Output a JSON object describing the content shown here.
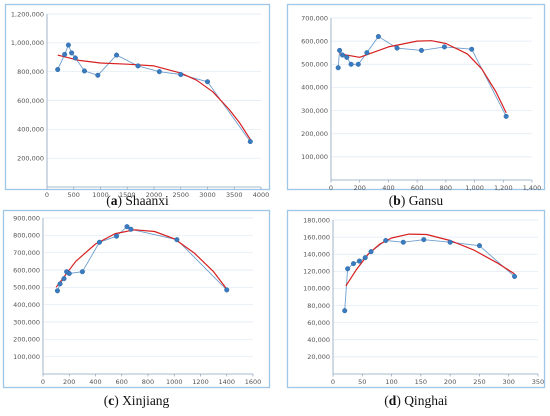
{
  "colors": {
    "frame": "#9ec6e6",
    "grid": "#dde9f3",
    "axis": "#8aa4bc",
    "observed": "#3a7bbf",
    "fit": "#d62020"
  },
  "chart_data": [
    {
      "type": "scatter",
      "panel_label": "a",
      "name": "Shaanxi",
      "xlim": [
        0,
        4000
      ],
      "ylim": [
        0,
        1200000
      ],
      "x_ticks": [
        "0",
        "500",
        "1000",
        "1500",
        "2000",
        "2500",
        "3000",
        "3500",
        "4000"
      ],
      "y_ticks": [
        "",
        "200,000",
        "400,000",
        "600,000",
        "800,000",
        "1,000,000",
        "1,200,000"
      ],
      "x_tick_values": [
        0,
        500,
        1000,
        1500,
        2000,
        2500,
        3000,
        3500,
        4000
      ],
      "y_tick_values": [
        0,
        200000,
        400000,
        600000,
        800000,
        1000000,
        1200000
      ],
      "points": [
        [
          200,
          815000
        ],
        [
          330,
          920000
        ],
        [
          400,
          985000
        ],
        [
          460,
          930000
        ],
        [
          530,
          895000
        ],
        [
          700,
          805000
        ],
        [
          950,
          775000
        ],
        [
          1300,
          915000
        ],
        [
          1700,
          840000
        ],
        [
          2100,
          800000
        ],
        [
          2500,
          780000
        ],
        [
          3000,
          730000
        ],
        [
          3800,
          315000
        ]
      ],
      "fit": [
        [
          200,
          915000
        ],
        [
          600,
          878000
        ],
        [
          1000,
          860000
        ],
        [
          1500,
          852000
        ],
        [
          2000,
          840000
        ],
        [
          2500,
          790000
        ],
        [
          2800,
          740000
        ],
        [
          3100,
          660000
        ],
        [
          3400,
          540000
        ],
        [
          3600,
          445000
        ],
        [
          3800,
          330000
        ]
      ]
    },
    {
      "type": "scatter",
      "panel_label": "b",
      "name": "Gansu",
      "xlim": [
        0,
        1400
      ],
      "ylim": [
        0,
        700000
      ],
      "x_ticks": [
        "0",
        "200",
        "400",
        "600",
        "800",
        "1,000",
        "1,200",
        "1,400"
      ],
      "y_ticks": [
        "",
        "100,000",
        "200,000",
        "300,000",
        "400,000",
        "500,000",
        "600,000",
        "700,000"
      ],
      "x_tick_values": [
        0,
        200,
        400,
        600,
        800,
        1000,
        1200,
        1400
      ],
      "y_tick_values": [
        0,
        100000,
        200000,
        300000,
        400000,
        500000,
        600000,
        700000
      ],
      "points": [
        [
          50,
          485000
        ],
        [
          60,
          560000
        ],
        [
          80,
          540000
        ],
        [
          110,
          530000
        ],
        [
          140,
          500000
        ],
        [
          190,
          500000
        ],
        [
          250,
          550000
        ],
        [
          330,
          620000
        ],
        [
          460,
          570000
        ],
        [
          630,
          560000
        ],
        [
          790,
          575000
        ],
        [
          980,
          565000
        ],
        [
          1220,
          275000
        ]
      ],
      "fit": [
        [
          60,
          545000
        ],
        [
          200,
          530000
        ],
        [
          400,
          575000
        ],
        [
          600,
          600000
        ],
        [
          700,
          602000
        ],
        [
          800,
          590000
        ],
        [
          950,
          545000
        ],
        [
          1050,
          480000
        ],
        [
          1150,
          380000
        ],
        [
          1220,
          290000
        ]
      ]
    },
    {
      "type": "scatter",
      "panel_label": "c",
      "name": "Xinjiang",
      "xlim": [
        0,
        1600
      ],
      "ylim": [
        0,
        900000
      ],
      "x_ticks": [
        "0",
        "200",
        "400",
        "600",
        "800",
        "1000",
        "1200",
        "1400",
        "1600"
      ],
      "y_ticks": [
        "",
        "100,000",
        "200,000",
        "300,000",
        "400,000",
        "500,000",
        "600,000",
        "700,000",
        "800,000",
        "900,000"
      ],
      "x_tick_values": [
        0,
        200,
        400,
        600,
        800,
        1000,
        1200,
        1400,
        1600
      ],
      "y_tick_values": [
        0,
        100000,
        200000,
        300000,
        400000,
        500000,
        600000,
        700000,
        800000,
        900000
      ],
      "points": [
        [
          110,
          480000
        ],
        [
          130,
          520000
        ],
        [
          160,
          550000
        ],
        [
          180,
          590000
        ],
        [
          200,
          580000
        ],
        [
          300,
          590000
        ],
        [
          430,
          760000
        ],
        [
          560,
          795000
        ],
        [
          640,
          850000
        ],
        [
          670,
          835000
        ],
        [
          1020,
          775000
        ],
        [
          1400,
          485000
        ]
      ],
      "fit": [
        [
          100,
          500000
        ],
        [
          250,
          650000
        ],
        [
          400,
          750000
        ],
        [
          550,
          810000
        ],
        [
          700,
          832000
        ],
        [
          850,
          822000
        ],
        [
          1000,
          780000
        ],
        [
          1150,
          700000
        ],
        [
          1300,
          590000
        ],
        [
          1400,
          490000
        ]
      ]
    },
    {
      "type": "scatter",
      "panel_label": "d",
      "name": "Qinghai",
      "xlim": [
        0,
        350
      ],
      "ylim": [
        0,
        180000
      ],
      "x_ticks": [
        "0",
        "50",
        "100",
        "150",
        "200",
        "250",
        "300",
        "350"
      ],
      "y_ticks": [
        "",
        "20,000",
        "40,000",
        "60,000",
        "80,000",
        "100,000",
        "120,000",
        "140,000",
        "160,000",
        "180,000"
      ],
      "x_tick_values": [
        0,
        50,
        100,
        150,
        200,
        250,
        300,
        350
      ],
      "y_tick_values": [
        0,
        20000,
        40000,
        60000,
        80000,
        100000,
        120000,
        140000,
        160000,
        180000
      ],
      "points": [
        [
          20,
          74000
        ],
        [
          25,
          123000
        ],
        [
          35,
          129000
        ],
        [
          45,
          132000
        ],
        [
          55,
          136000
        ],
        [
          65,
          143000
        ],
        [
          90,
          156000
        ],
        [
          120,
          154000
        ],
        [
          155,
          157000
        ],
        [
          200,
          154000
        ],
        [
          250,
          150000
        ],
        [
          310,
          114000
        ]
      ],
      "fit": [
        [
          22,
          103000
        ],
        [
          40,
          122000
        ],
        [
          60,
          140000
        ],
        [
          80,
          152000
        ],
        [
          100,
          159000
        ],
        [
          130,
          163500
        ],
        [
          160,
          163000
        ],
        [
          200,
          156000
        ],
        [
          240,
          145000
        ],
        [
          280,
          130000
        ],
        [
          310,
          117000
        ]
      ]
    }
  ]
}
